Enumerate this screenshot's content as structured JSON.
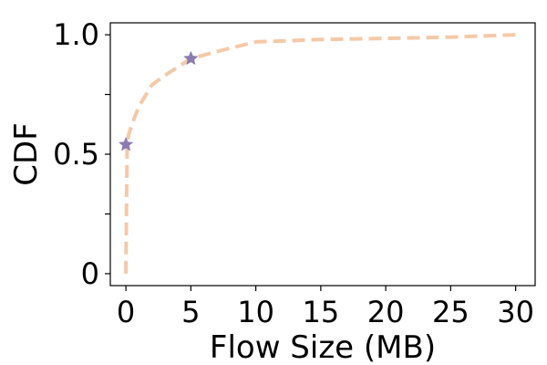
{
  "chart_data": {
    "type": "line",
    "title": "",
    "xlabel": "Flow Size (MB)",
    "ylabel": "CDF",
    "xlim": [
      -1.2,
      31.5
    ],
    "ylim": [
      -0.05,
      1.05
    ],
    "x_ticks": [
      0,
      5,
      10,
      15,
      20,
      25,
      30
    ],
    "x_tick_labels": [
      "0",
      "5",
      "10",
      "15",
      "20",
      "25",
      "30"
    ],
    "y_ticks": [
      0,
      0.25,
      0.5,
      0.75,
      1.0
    ],
    "y_tick_labels": [
      "0",
      "",
      "0.5",
      "",
      "1.0"
    ],
    "grid": false,
    "series": [
      {
        "line_color": "#f4c9a8",
        "line_style": "dashed",
        "x": [
          0,
          0.05,
          0.1,
          0.2,
          0.5,
          1,
          2,
          3,
          5,
          7,
          10,
          15,
          20,
          25,
          30
        ],
        "y": [
          0,
          0.3,
          0.54,
          0.58,
          0.63,
          0.7,
          0.79,
          0.83,
          0.9,
          0.93,
          0.97,
          0.98,
          0.985,
          0.99,
          1.0
        ]
      }
    ],
    "markers": {
      "shape": "star",
      "color": "#8c7bb0",
      "points": [
        {
          "x": 0,
          "y": 0.54
        },
        {
          "x": 5,
          "y": 0.9
        }
      ]
    }
  }
}
